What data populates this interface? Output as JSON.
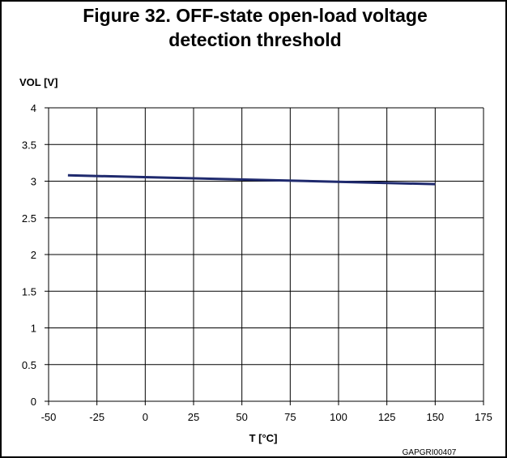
{
  "figure": {
    "title_line1": "Figure 32. OFF-state open-load voltage",
    "title_line2": "detection threshold",
    "code": "GAPGRI00407"
  },
  "chart_data": {
    "type": "line",
    "xlabel": "T [°C]",
    "ylabel": "VOL [V]",
    "xlim": [
      -50,
      175
    ],
    "ylim": [
      0,
      4
    ],
    "xticks": [
      -50,
      -25,
      0,
      25,
      50,
      75,
      100,
      125,
      150,
      175
    ],
    "yticks": [
      0,
      0.5,
      1,
      1.5,
      2,
      2.5,
      3,
      3.5,
      4
    ],
    "grid": true,
    "colors": {
      "line": "#1f2a6e",
      "grid": "#000000"
    },
    "series": [
      {
        "x": [
          -40,
          150
        ],
        "y": [
          3.08,
          2.96
        ]
      }
    ]
  }
}
